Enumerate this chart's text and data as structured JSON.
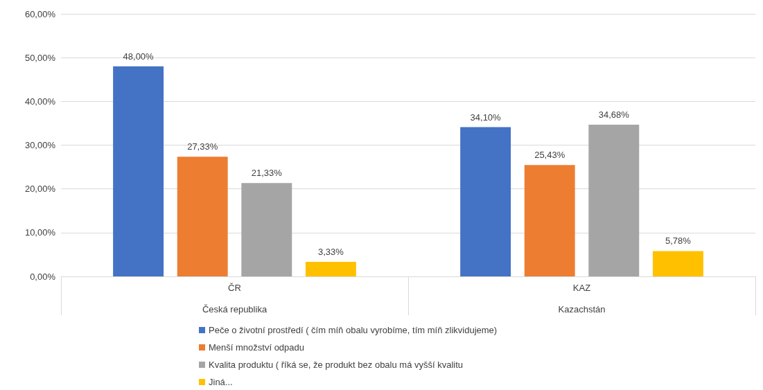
{
  "chart_data": {
    "type": "bar",
    "categories": [
      "ČR",
      "KAZ"
    ],
    "annotations": [
      "Česká republika",
      "Kazachstán"
    ],
    "series": [
      {
        "name": "Peče o životní prostředí ( čím míň obalu vyrobíme, tím míň zlikvidujeme)",
        "color": "#4472c4",
        "values": [
          48,
          34.1
        ],
        "value_labels": [
          "48,00%",
          "34,10%"
        ]
      },
      {
        "name": "Menší množství odpadu",
        "color": "#ed7d31",
        "values": [
          27.33,
          25.43
        ],
        "value_labels": [
          "27,33%",
          "25,43%"
        ]
      },
      {
        "name": "Kvalita produktu ( říká se, že produkt bez obalu má vyšší kvalitu",
        "color": "#a5a5a5",
        "values": [
          21.33,
          34.68
        ],
        "value_labels": [
          "21,33%",
          "34,68%"
        ]
      },
      {
        "name": "Jiná...",
        "color": "#ffc000",
        "values": [
          3.33,
          5.78
        ],
        "value_labels": [
          "3,33%",
          "5,78%"
        ]
      }
    ],
    "ylim": [
      0,
      60
    ],
    "yticks": [
      {
        "value": 0,
        "label": "0,00%"
      },
      {
        "value": 10,
        "label": "10,00%"
      },
      {
        "value": 20,
        "label": "20,00%"
      },
      {
        "value": 30,
        "label": "30,00%"
      },
      {
        "value": 40,
        "label": "40,00%"
      },
      {
        "value": 50,
        "label": "50,00%"
      },
      {
        "value": 60,
        "label": "60,00%"
      }
    ],
    "grid": "y",
    "legend": "bottom"
  }
}
